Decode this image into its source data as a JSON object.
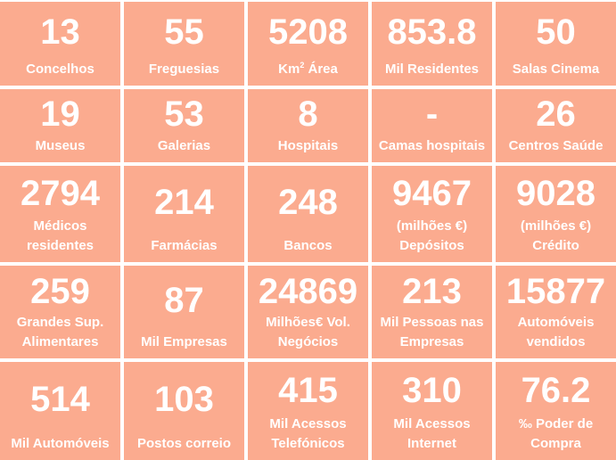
{
  "page": {
    "background_color": "#ffffff",
    "tile_color": "#FBAB8F",
    "text_color": "#FFFFFF"
  },
  "grid": {
    "columns": 5,
    "rows": 5,
    "tiles": [
      {
        "id": "concelhos",
        "value": "13",
        "label_lines": [
          "Concelhos"
        ]
      },
      {
        "id": "freguesias",
        "value": "55",
        "label_lines": [
          "Freguesias"
        ]
      },
      {
        "id": "km2-area",
        "value": "5208",
        "label_lines": [
          [
            {
              "text": "Km"
            },
            {
              "text": "2",
              "sup": true
            },
            {
              "text": " Área"
            }
          ]
        ]
      },
      {
        "id": "mil-residentes",
        "value": "853.8",
        "label_lines": [
          "Mil Residentes"
        ]
      },
      {
        "id": "salas-cinema",
        "value": "50",
        "label_lines": [
          "Salas Cinema"
        ]
      },
      {
        "id": "museus",
        "value": "19",
        "label_lines": [
          "Museus"
        ]
      },
      {
        "id": "galerias",
        "value": "53",
        "label_lines": [
          "Galerias"
        ]
      },
      {
        "id": "hospitais",
        "value": "8",
        "label_lines": [
          "Hospitais"
        ]
      },
      {
        "id": "camas-hospitais",
        "value": "-",
        "label_lines": [
          "Camas hospitais"
        ]
      },
      {
        "id": "centros-saude",
        "value": "26",
        "label_lines": [
          "Centros Saúde"
        ]
      },
      {
        "id": "medicos-residentes",
        "value": "2794",
        "label_lines": [
          "Médicos",
          "residentes"
        ]
      },
      {
        "id": "farmacias",
        "value": "214",
        "label_lines": [
          "Farmácias"
        ]
      },
      {
        "id": "bancos",
        "value": "248",
        "label_lines": [
          "Bancos"
        ]
      },
      {
        "id": "depositos",
        "value": "9467",
        "label_lines": [
          "(milhões €)",
          "Depósitos"
        ]
      },
      {
        "id": "credito",
        "value": "9028",
        "label_lines": [
          "(milhões €)",
          "Crédito"
        ]
      },
      {
        "id": "grandes-sup-alimentares",
        "value": "259",
        "label_lines": [
          "Grandes Sup.",
          "Alimentares"
        ]
      },
      {
        "id": "mil-empresas",
        "value": "87",
        "label_lines": [
          "Mil Empresas"
        ]
      },
      {
        "id": "vol-negocios",
        "value": "24869",
        "label_lines": [
          "Milhões€ Vol.",
          "Negócios"
        ]
      },
      {
        "id": "pessoas-nas-empresas",
        "value": "213",
        "label_lines": [
          "Mil Pessoas nas",
          "Empresas"
        ]
      },
      {
        "id": "automoveis-vendidos",
        "value": "15877",
        "label_lines": [
          "Automóveis",
          "vendidos"
        ]
      },
      {
        "id": "mil-automoveis",
        "value": "514",
        "label_lines": [
          "Mil Automóveis"
        ]
      },
      {
        "id": "postos-correio",
        "value": "103",
        "label_lines": [
          "Postos correio"
        ]
      },
      {
        "id": "mil-acessos-telefonicos",
        "value": "415",
        "label_lines": [
          "Mil Acessos",
          "Telefónicos"
        ]
      },
      {
        "id": "mil-acessos-internet",
        "value": "310",
        "label_lines": [
          "Mil Acessos",
          "Internet"
        ]
      },
      {
        "id": "poder-de-compra",
        "value": "76.2",
        "label_lines": [
          "‰ Poder de",
          "Compra"
        ]
      }
    ]
  },
  "chart_data": {
    "type": "table",
    "title": "",
    "items": [
      {
        "label": "Concelhos",
        "value": 13
      },
      {
        "label": "Freguesias",
        "value": 55
      },
      {
        "label": "Km² Área",
        "value": 5208
      },
      {
        "label": "Mil Residentes",
        "value": 853.8
      },
      {
        "label": "Salas Cinema",
        "value": 50
      },
      {
        "label": "Museus",
        "value": 19
      },
      {
        "label": "Galerias",
        "value": 53
      },
      {
        "label": "Hospitais",
        "value": 8
      },
      {
        "label": "Camas hospitais",
        "value": null
      },
      {
        "label": "Centros Saúde",
        "value": 26
      },
      {
        "label": "Médicos residentes",
        "value": 2794
      },
      {
        "label": "Farmácias",
        "value": 214
      },
      {
        "label": "Bancos",
        "value": 248
      },
      {
        "label": "(milhões €) Depósitos",
        "value": 9467
      },
      {
        "label": "(milhões €) Crédito",
        "value": 9028
      },
      {
        "label": "Grandes Sup. Alimentares",
        "value": 259
      },
      {
        "label": "Mil Empresas",
        "value": 87
      },
      {
        "label": "Milhões€ Vol. Negócios",
        "value": 24869
      },
      {
        "label": "Mil Pessoas nas Empresas",
        "value": 213
      },
      {
        "label": "Automóveis vendidos",
        "value": 15877
      },
      {
        "label": "Mil Automóveis",
        "value": 514
      },
      {
        "label": "Postos correio",
        "value": 103
      },
      {
        "label": "Mil Acessos Telefónicos",
        "value": 415
      },
      {
        "label": "Mil Acessos Internet",
        "value": 310
      },
      {
        "label": "‰ Poder de Compra",
        "value": 76.2
      }
    ]
  }
}
